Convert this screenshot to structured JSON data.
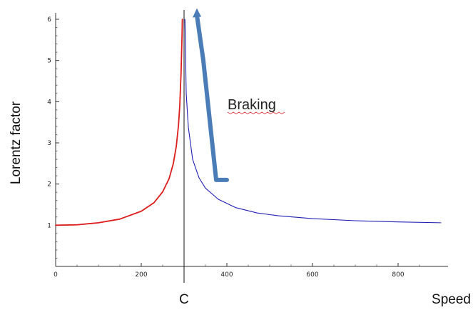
{
  "chart_data": {
    "type": "line",
    "title": "",
    "xlabel": "Speed",
    "ylabel": "Lorentz factor",
    "xlim": [
      0,
      900
    ],
    "ylim": [
      0,
      6
    ],
    "grid": false,
    "x_ticks": [
      0,
      200,
      400,
      600,
      800
    ],
    "y_ticks": [
      1,
      2,
      3,
      4,
      5,
      6
    ],
    "x_tick_labels": [
      "0",
      "200",
      "400",
      "600",
      "800"
    ],
    "y_tick_labels": [
      "1",
      "2",
      "3",
      "4",
      "5",
      "6"
    ],
    "vertical_marker": {
      "x": 300,
      "label": "C"
    },
    "series": [
      {
        "color": "#dd1c1c",
        "x": [
          0,
          50,
          100,
          150,
          200,
          230,
          250,
          265,
          275,
          282,
          287,
          290,
          293,
          295,
          296
        ],
        "y": [
          1.0,
          1.01,
          1.06,
          1.15,
          1.34,
          1.55,
          1.81,
          2.13,
          2.5,
          2.93,
          3.43,
          3.91,
          4.7,
          5.5,
          6.0
        ]
      },
      {
        "color": "#1f1fb4",
        "x": [
          302,
          303,
          305,
          310,
          320,
          335,
          350,
          380,
          420,
          470,
          520,
          600,
          700,
          800,
          900
        ],
        "y": [
          6.0,
          5.5,
          4.2,
          3.38,
          2.6,
          2.15,
          1.9,
          1.63,
          1.43,
          1.3,
          1.23,
          1.16,
          1.11,
          1.08,
          1.06
        ]
      }
    ],
    "annotations": [
      {
        "text": "Braking",
        "arrow_color": "#4a7db8",
        "arrow_path": [
          [
            400,
            2.1
          ],
          [
            375,
            2.1
          ],
          [
            345,
            5.0
          ],
          [
            330,
            6.2
          ]
        ]
      }
    ]
  }
}
